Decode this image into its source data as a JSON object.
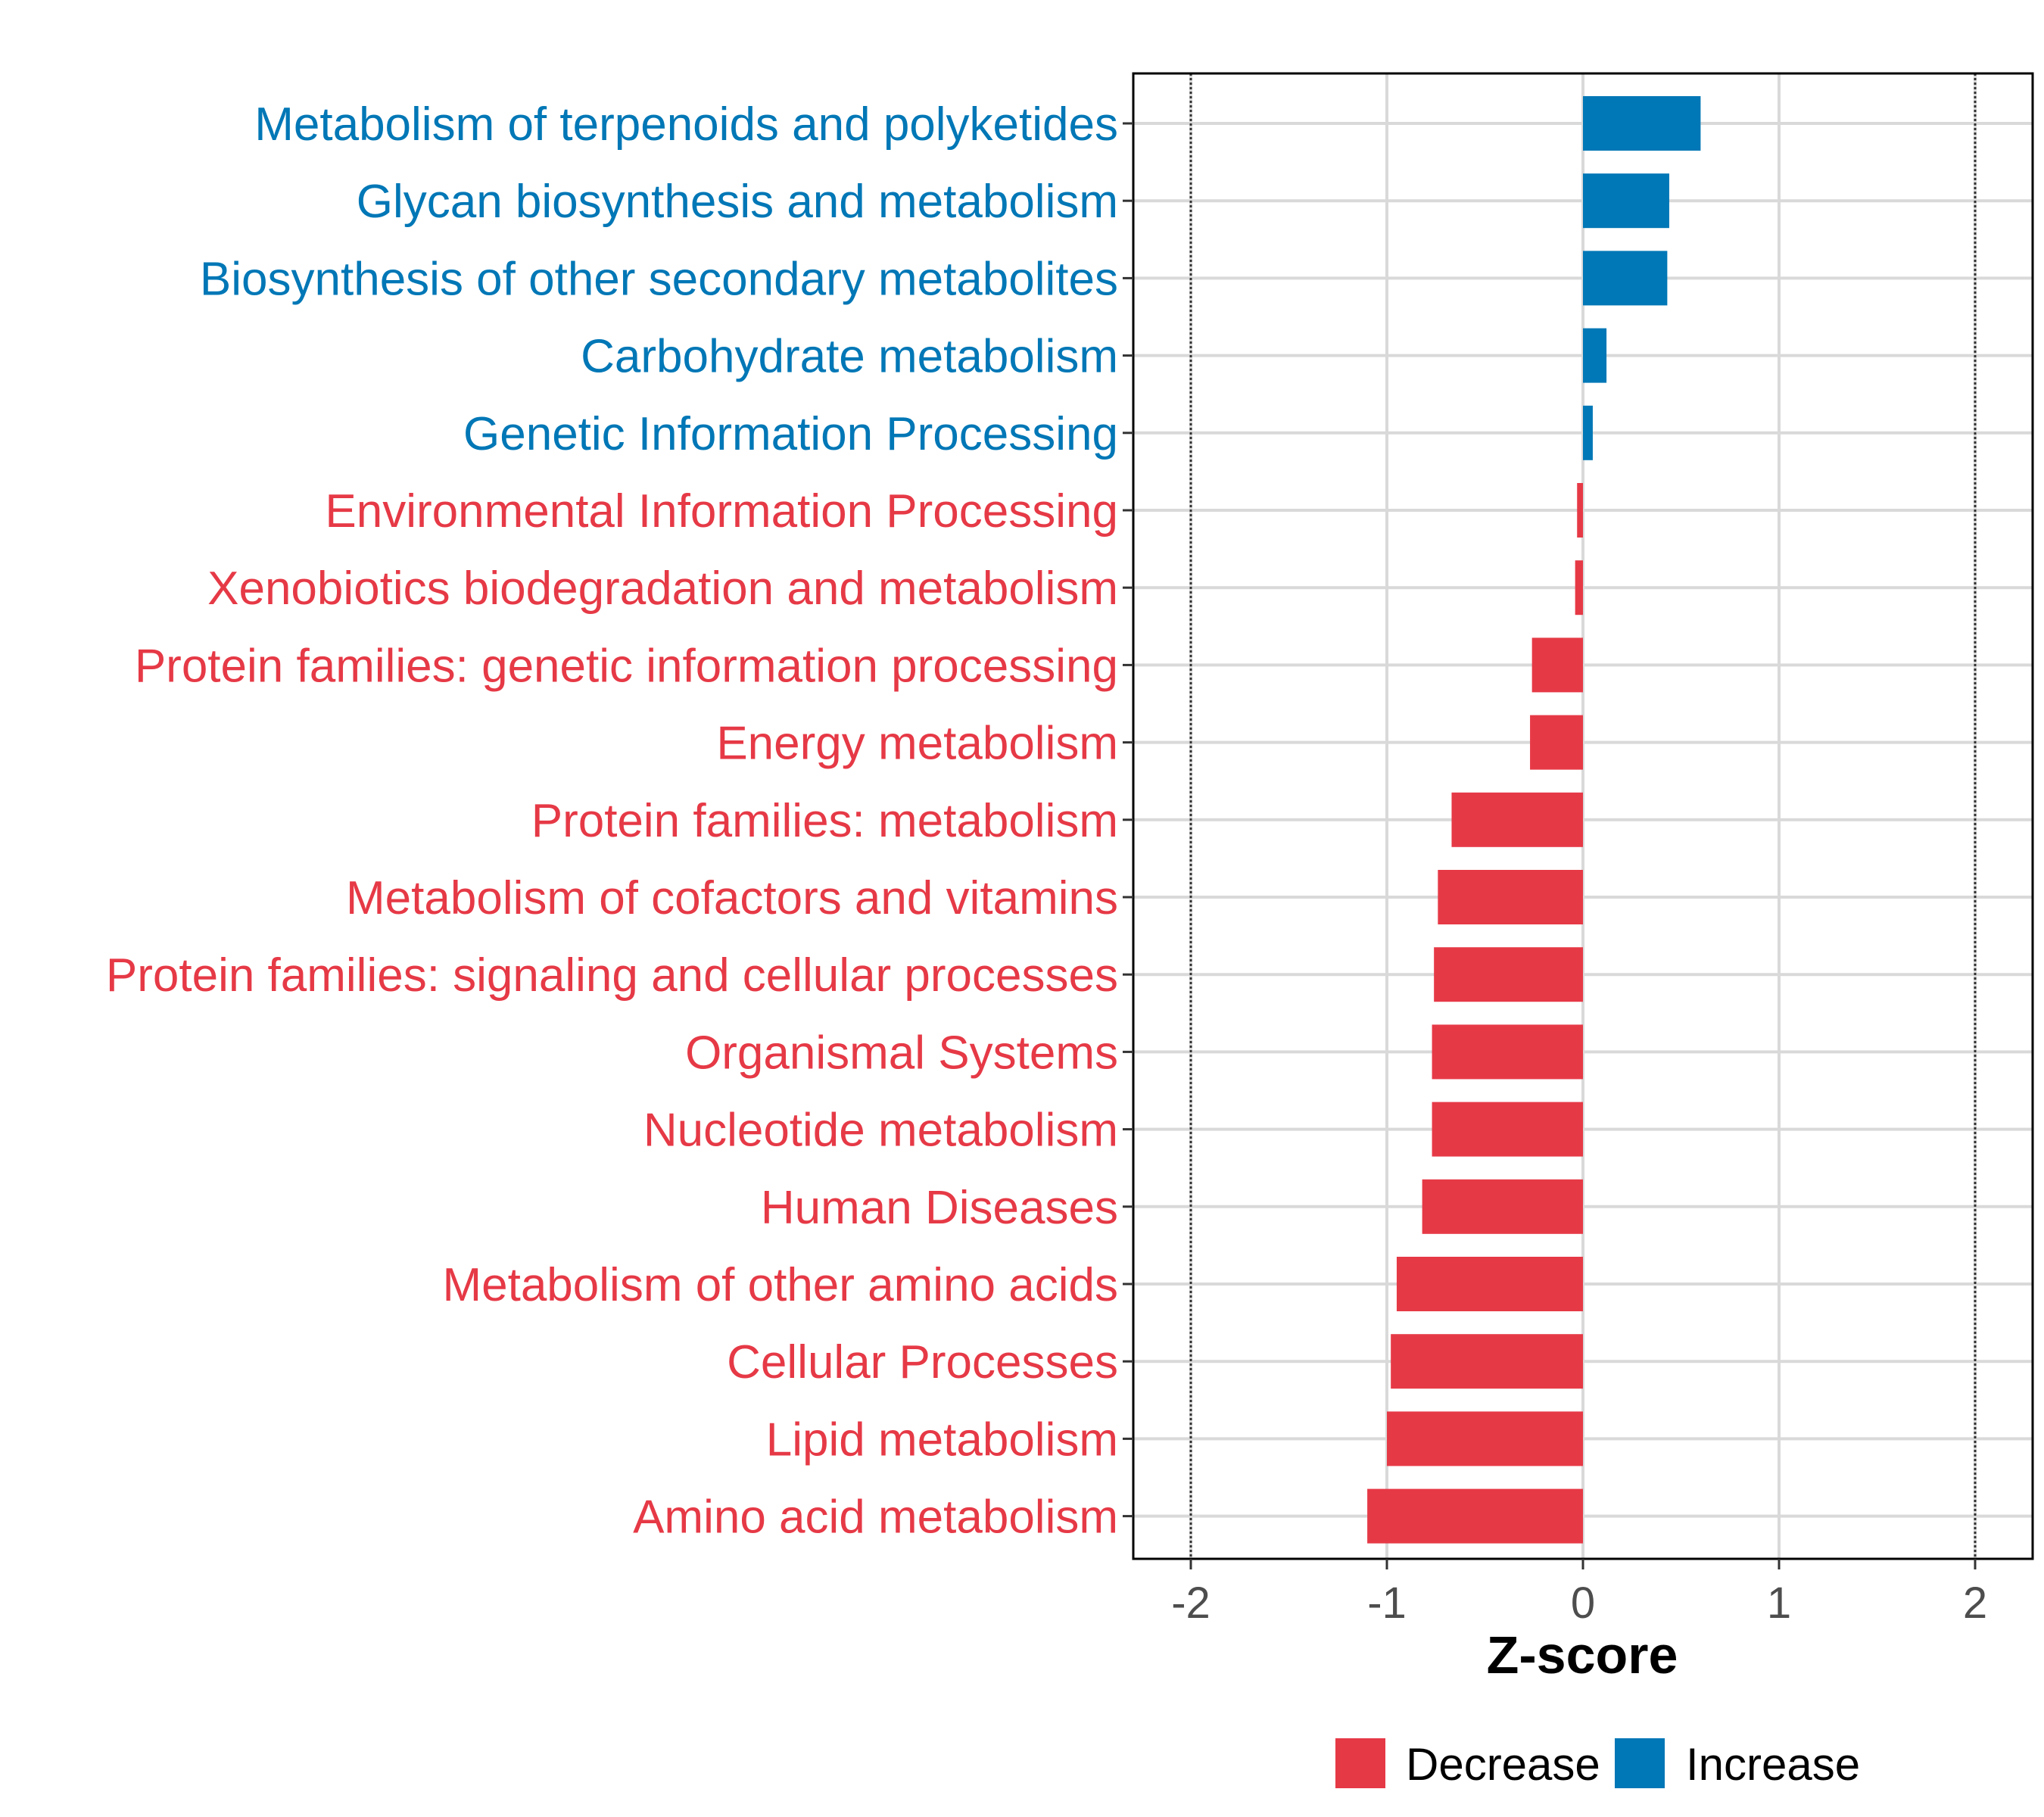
{
  "chart_data": {
    "type": "bar",
    "orientation": "horizontal",
    "xlabel": "Z-score",
    "xlim": [
      -2.3,
      2.3
    ],
    "xticks": [
      -2,
      -1,
      0,
      1,
      2
    ],
    "xtick_labels": [
      "-2",
      "-1",
      "0",
      "1",
      "2"
    ],
    "reference_lines": [
      -2,
      2
    ],
    "grid": true,
    "legend_position": "bottom",
    "colors": {
      "Decrease": "#e63946",
      "Increase": "#0077b6"
    },
    "legend": [
      {
        "label": "Decrease",
        "group": "Decrease"
      },
      {
        "label": "Increase",
        "group": "Increase"
      }
    ],
    "categories": [
      "Metabolism of terpenoids and polyketides",
      "Glycan biosynthesis and metabolism",
      "Biosynthesis of other secondary metabolites",
      "Carbohydrate metabolism",
      "Genetic Information Processing",
      "Environmental Information Processing",
      "Xenobiotics biodegradation and metabolism",
      "Protein families: genetic information processing",
      "Energy metabolism",
      "Protein families: metabolism",
      "Metabolism of cofactors and vitamins",
      "Protein families: signaling and cellular processes",
      "Organismal Systems",
      "Nucleotide metabolism",
      "Human Diseases",
      "Metabolism of other amino acids",
      "Cellular Processes",
      "Lipid metabolism",
      "Amino acid metabolism"
    ],
    "values": [
      0.6,
      0.44,
      0.43,
      0.12,
      0.05,
      -0.03,
      -0.04,
      -0.26,
      -0.27,
      -0.67,
      -0.74,
      -0.76,
      -0.77,
      -0.77,
      -0.82,
      -0.95,
      -0.98,
      -1.0,
      -1.1
    ],
    "groups": [
      "Increase",
      "Increase",
      "Increase",
      "Increase",
      "Increase",
      "Decrease",
      "Decrease",
      "Decrease",
      "Decrease",
      "Decrease",
      "Decrease",
      "Decrease",
      "Decrease",
      "Decrease",
      "Decrease",
      "Decrease",
      "Decrease",
      "Decrease",
      "Decrease"
    ]
  }
}
